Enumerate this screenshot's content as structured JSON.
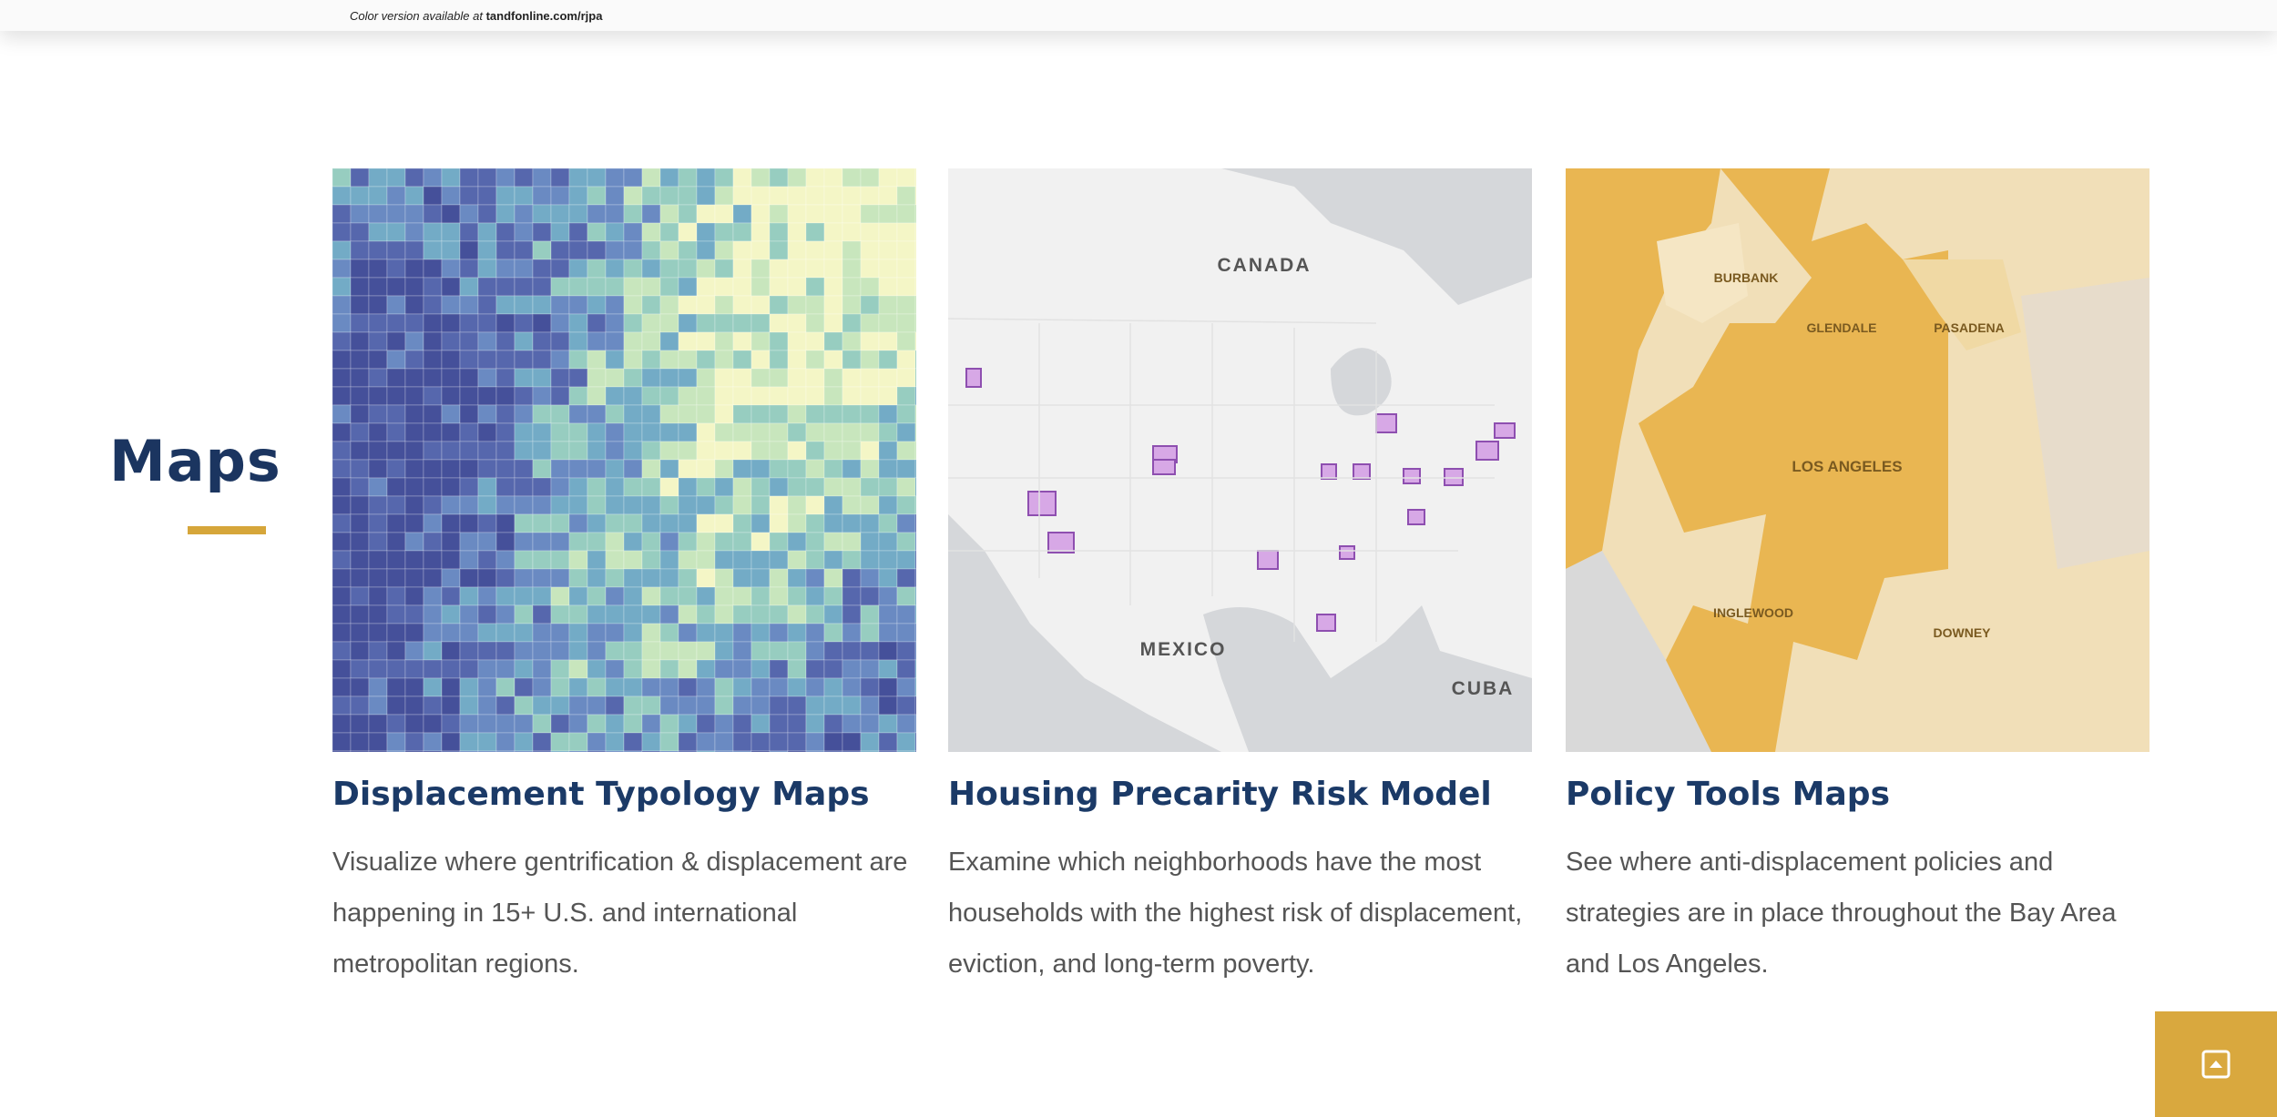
{
  "header": {
    "note": "Color version available at",
    "note_link": "tandfonline.com/rjpa"
  },
  "section": {
    "title": "Maps"
  },
  "cards": [
    {
      "title": "Displacement Typology Maps",
      "description": "Visualize where gentrification & displacement are happening in 15+ U.S. and international metropolitan regions."
    },
    {
      "title": "Housing Precarity Risk Model",
      "description": "Examine which neighborhoods have the most households with the highest risk of displacement, eviction, and long-term poverty.",
      "map_labels": [
        "CANADA",
        "MEXICO",
        "CUBA"
      ]
    },
    {
      "title": "Policy Tools Maps",
      "description": "See where anti-displacement policies and strategies are in place throughout the Bay Area and Los Angeles.",
      "map_labels": [
        "BURBANK",
        "GLENDALE",
        "PASADENA",
        "LOS ANGELES",
        "INGLEWOOD",
        "DOWNEY"
      ]
    }
  ]
}
